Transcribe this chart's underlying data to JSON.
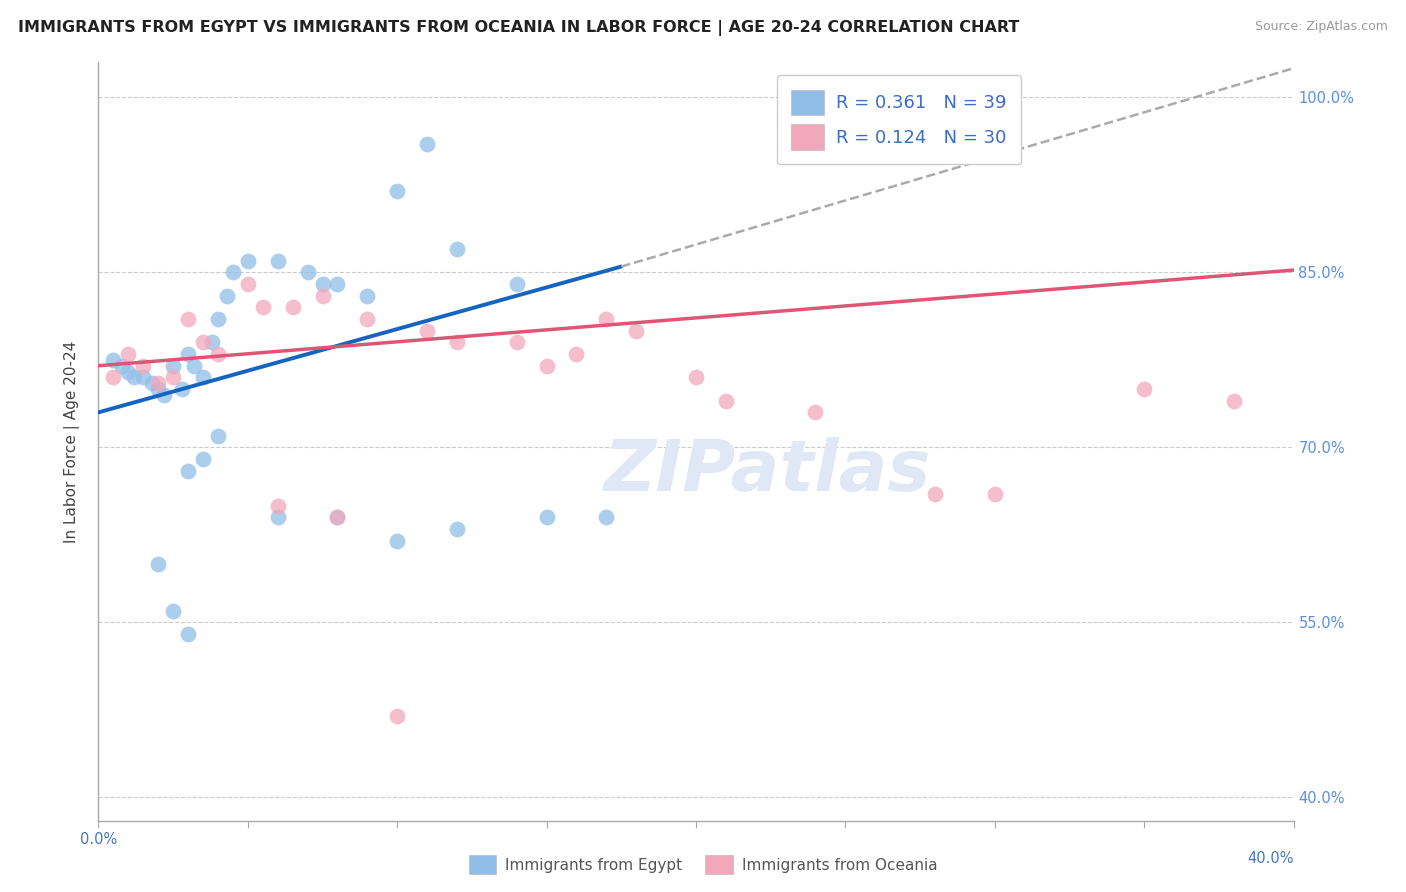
{
  "title": "IMMIGRANTS FROM EGYPT VS IMMIGRANTS FROM OCEANIA IN LABOR FORCE | AGE 20-24 CORRELATION CHART",
  "source": "Source: ZipAtlas.com",
  "ylabel": "In Labor Force | Age 20-24",
  "xlim": [
    0.0,
    0.4
  ],
  "ylim": [
    0.38,
    1.03
  ],
  "yticks": [
    0.4,
    0.55,
    0.7,
    0.85,
    1.0
  ],
  "yticklabels": [
    "40.0%",
    "55.0%",
    "70.0%",
    "85.0%",
    "100.0%"
  ],
  "xtick_positions": [
    0.0,
    0.05,
    0.1,
    0.15,
    0.2,
    0.25,
    0.3,
    0.35,
    0.4
  ],
  "xtick_left_label": "0.0%",
  "xtick_right_label": "40.0%",
  "legend_egypt_R": "R = 0.361",
  "legend_egypt_N": "N = 39",
  "legend_oceania_R": "R = 0.124",
  "legend_oceania_N": "N = 30",
  "color_egypt": "#90BEE8",
  "color_oceania": "#F2A8BB",
  "color_egypt_line": "#1565C0",
  "color_egypt_line_dash": "#AAAAAA",
  "color_oceania_line": "#E05575",
  "legend_text_color": "#3B6CC7",
  "yaxis_tick_color": "#5B8FE0",
  "watermark_color": "#E0E8F5",
  "grid_color": "#CCCCCC",
  "egypt_x": [
    0.005,
    0.008,
    0.01,
    0.012,
    0.015,
    0.018,
    0.02,
    0.022,
    0.025,
    0.028,
    0.03,
    0.032,
    0.035,
    0.038,
    0.04,
    0.043,
    0.045,
    0.05,
    0.06,
    0.07,
    0.075,
    0.08,
    0.09,
    0.1,
    0.11,
    0.12,
    0.14,
    0.03,
    0.035,
    0.04,
    0.06,
    0.08,
    0.1,
    0.12,
    0.15,
    0.17,
    0.02,
    0.025,
    0.03
  ],
  "egypt_y": [
    0.775,
    0.77,
    0.765,
    0.76,
    0.76,
    0.755,
    0.75,
    0.745,
    0.77,
    0.75,
    0.78,
    0.77,
    0.76,
    0.79,
    0.81,
    0.83,
    0.85,
    0.86,
    0.86,
    0.85,
    0.84,
    0.84,
    0.83,
    0.92,
    0.96,
    0.87,
    0.84,
    0.68,
    0.69,
    0.71,
    0.64,
    0.64,
    0.62,
    0.63,
    0.64,
    0.64,
    0.6,
    0.56,
    0.54
  ],
  "oceania_x": [
    0.005,
    0.01,
    0.015,
    0.02,
    0.025,
    0.03,
    0.035,
    0.04,
    0.05,
    0.055,
    0.065,
    0.075,
    0.09,
    0.11,
    0.12,
    0.14,
    0.15,
    0.16,
    0.17,
    0.18,
    0.2,
    0.21,
    0.24,
    0.28,
    0.3,
    0.35,
    0.38,
    0.06,
    0.08,
    0.1
  ],
  "oceania_y": [
    0.76,
    0.78,
    0.77,
    0.755,
    0.76,
    0.81,
    0.79,
    0.78,
    0.84,
    0.82,
    0.82,
    0.83,
    0.81,
    0.8,
    0.79,
    0.79,
    0.77,
    0.78,
    0.81,
    0.8,
    0.76,
    0.74,
    0.73,
    0.66,
    0.66,
    0.75,
    0.74,
    0.65,
    0.64,
    0.47
  ],
  "egypt_line_x0": 0.0,
  "egypt_line_y0": 0.73,
  "egypt_line_x1": 0.175,
  "egypt_line_y1": 0.855,
  "egypt_line_dash_x0": 0.175,
  "egypt_line_dash_y0": 0.855,
  "egypt_line_dash_x1": 0.4,
  "egypt_line_dash_y1": 1.025,
  "oceania_line_x0": 0.0,
  "oceania_line_y0": 0.77,
  "oceania_line_x1": 0.4,
  "oceania_line_y1": 0.852
}
